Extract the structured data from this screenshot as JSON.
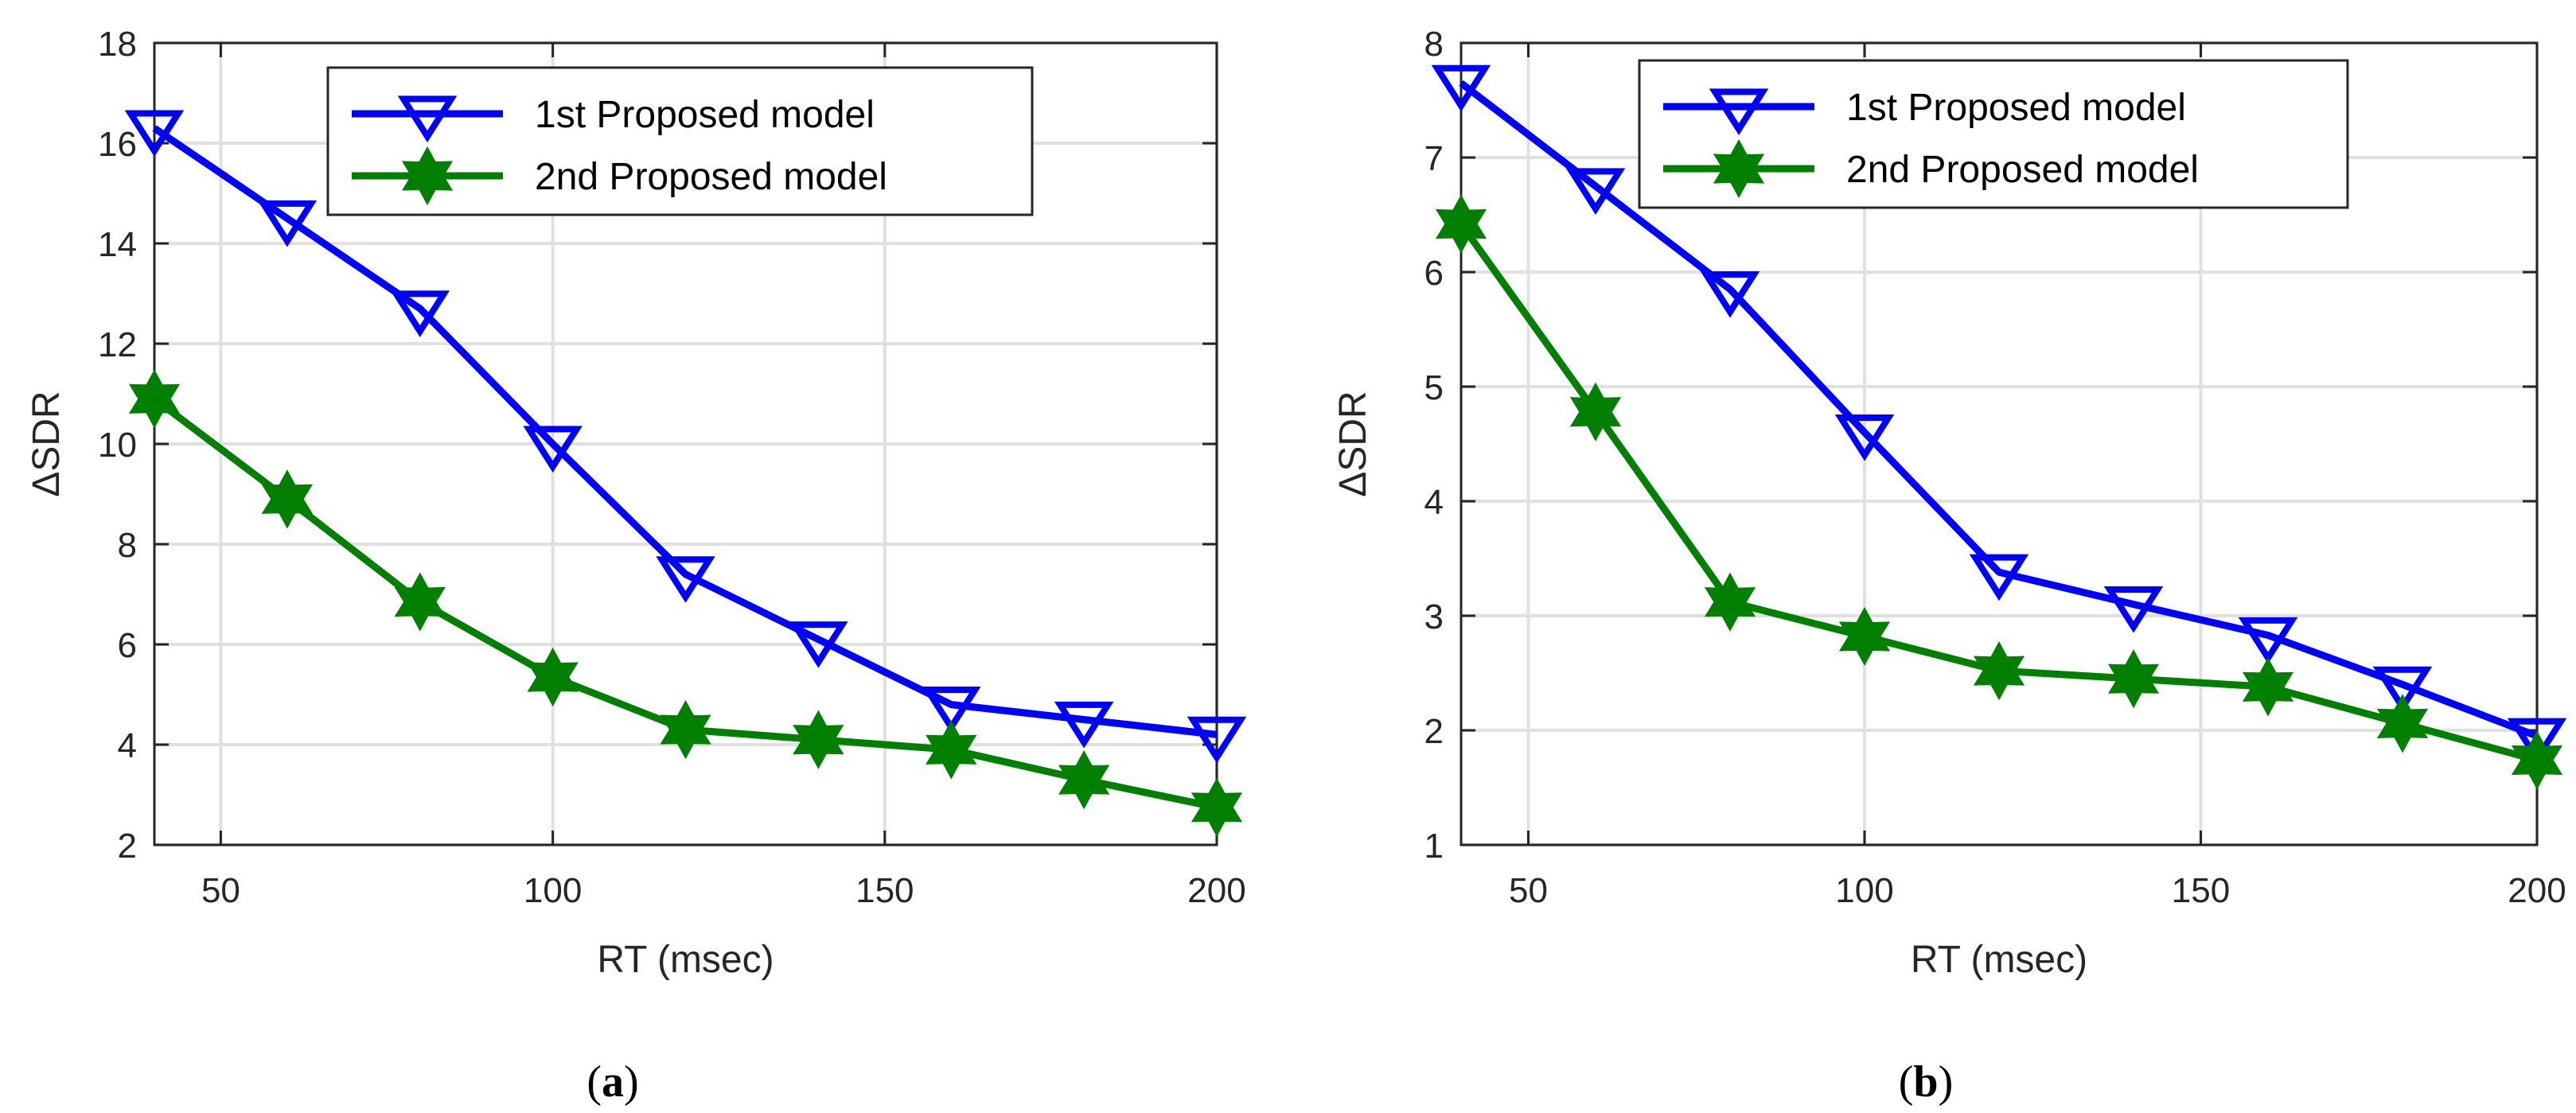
{
  "chart_data": [
    {
      "type": "line",
      "caption": "(a)",
      "caption_parts": {
        "open": "(",
        "letter": "a",
        "close": ")"
      },
      "title": "",
      "xlabel": "RT (msec)",
      "ylabel": "ΔSDR",
      "xlim": [
        40,
        200
      ],
      "ylim": [
        2,
        18
      ],
      "xticks": [
        50,
        100,
        150,
        200
      ],
      "yticks": [
        2,
        4,
        6,
        8,
        10,
        12,
        14,
        16,
        18
      ],
      "grid": true,
      "legend_position": "top-center",
      "x": [
        40,
        60,
        80,
        100,
        120,
        140,
        160,
        180,
        200
      ],
      "series": [
        {
          "name": "1st Proposed model",
          "color": "#0000FF",
          "marker": "triangle-down",
          "values": [
            16.3,
            14.5,
            12.7,
            10.0,
            7.4,
            6.1,
            4.8,
            4.5,
            4.2
          ]
        },
        {
          "name": "2nd Proposed model",
          "color": "#007F00",
          "marker": "hexagram",
          "values": [
            10.9,
            8.9,
            6.85,
            5.35,
            4.3,
            4.1,
            3.9,
            3.3,
            2.75
          ]
        }
      ]
    },
    {
      "type": "line",
      "caption": "(b)",
      "caption_parts": {
        "open": "(",
        "letter": "b",
        "close": ")"
      },
      "title": "",
      "xlabel": "RT (msec)",
      "ylabel": "ΔSDR",
      "xlim": [
        40,
        200
      ],
      "ylim": [
        1,
        8
      ],
      "xticks": [
        50,
        100,
        150,
        200
      ],
      "yticks": [
        1,
        2,
        3,
        4,
        5,
        6,
        7,
        8
      ],
      "grid": true,
      "legend_position": "top-center",
      "x": [
        40,
        60,
        80,
        100,
        120,
        140,
        160,
        180,
        200
      ],
      "series": [
        {
          "name": "1st Proposed model",
          "color": "#0000FF",
          "marker": "triangle-down",
          "values": [
            7.65,
            6.75,
            5.85,
            4.6,
            3.38,
            3.1,
            2.83,
            2.4,
            1.95
          ]
        },
        {
          "name": "2nd Proposed model",
          "color": "#007F00",
          "marker": "hexagram",
          "values": [
            6.42,
            4.78,
            3.12,
            2.82,
            2.52,
            2.45,
            2.38,
            2.06,
            1.74
          ]
        }
      ]
    }
  ]
}
